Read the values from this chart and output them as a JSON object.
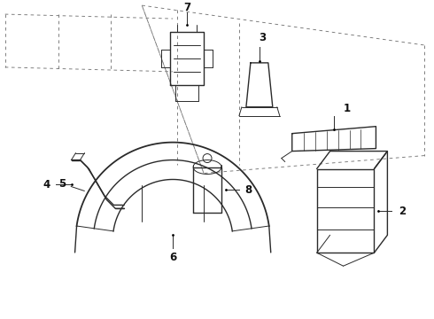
{
  "background_color": "#ffffff",
  "line_color": "#2a2a2a",
  "label_color": "#111111",
  "fig_width": 4.9,
  "fig_height": 3.6,
  "dpi": 100,
  "label_fontsize": 8.5
}
